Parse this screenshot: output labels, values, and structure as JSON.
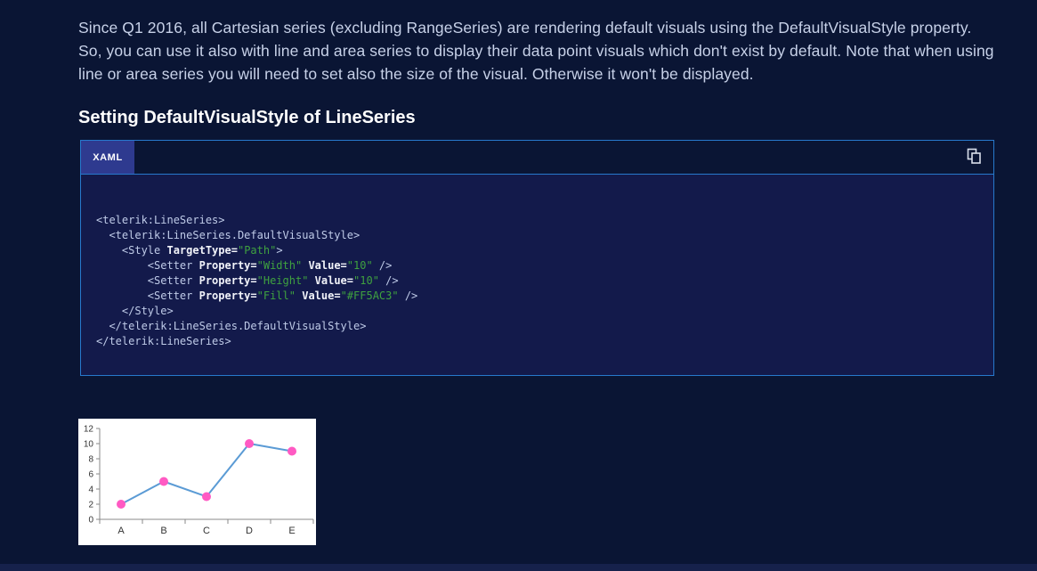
{
  "page": {
    "background": "#0A1534",
    "footer_bar_color": "#16214B"
  },
  "article": {
    "intro_paragraph": "Since Q1 2016, all Cartesian series (excluding RangeSeries) are rendering default visuals using the DefaultVisualStyle property. So, you can use it also with line and area series to display their data point visuals which don't exist by default. Note that when using line or area series you will need to set also the size of the visual. Otherwise it won't be displayed.",
    "section_heading": "Setting DefaultVisualStyle of LineSeries"
  },
  "code_block": {
    "tab_label": "XAML",
    "copy_icon": "copy-icon",
    "colors": {
      "border": "#2779CC",
      "active_tab_bg": "#2E3A8F",
      "code_bg": "#131A4B",
      "tag_text": "#BFCBE8",
      "attribute_text": "#F1F3F9",
      "value_text": "#3FA23F"
    },
    "lines": [
      [
        {
          "t": "<telerik:LineSeries>",
          "c": "tag"
        }
      ],
      [
        {
          "t": "  <telerik:LineSeries.DefaultVisualStyle>",
          "c": "tag"
        }
      ],
      [
        {
          "t": "    <Style ",
          "c": "tag"
        },
        {
          "t": "TargetType=",
          "c": "attr"
        },
        {
          "t": "\"Path\"",
          "c": "val"
        },
        {
          "t": ">",
          "c": "tag"
        }
      ],
      [
        {
          "t": "        <Setter ",
          "c": "tag"
        },
        {
          "t": "Property=",
          "c": "attr"
        },
        {
          "t": "\"Width\"",
          "c": "val"
        },
        {
          "t": " ",
          "c": "tag"
        },
        {
          "t": "Value=",
          "c": "attr"
        },
        {
          "t": "\"10\"",
          "c": "val"
        },
        {
          "t": " />",
          "c": "tag"
        }
      ],
      [
        {
          "t": "        <Setter ",
          "c": "tag"
        },
        {
          "t": "Property=",
          "c": "attr"
        },
        {
          "t": "\"Height\"",
          "c": "val"
        },
        {
          "t": " ",
          "c": "tag"
        },
        {
          "t": "Value=",
          "c": "attr"
        },
        {
          "t": "\"10\"",
          "c": "val"
        },
        {
          "t": " />",
          "c": "tag"
        }
      ],
      [
        {
          "t": "        <Setter ",
          "c": "tag"
        },
        {
          "t": "Property=",
          "c": "attr"
        },
        {
          "t": "\"Fill\"",
          "c": "val"
        },
        {
          "t": " ",
          "c": "tag"
        },
        {
          "t": "Value=",
          "c": "attr"
        },
        {
          "t": "\"#FF5AC3\"",
          "c": "val"
        },
        {
          "t": " />",
          "c": "tag"
        }
      ],
      [
        {
          "t": "    </Style>",
          "c": "tag"
        }
      ],
      [
        {
          "t": "  </telerik:LineSeries.DefaultVisualStyle>",
          "c": "tag"
        }
      ],
      [
        {
          "t": "</telerik:LineSeries>",
          "c": "tag"
        }
      ]
    ]
  },
  "chart_data": {
    "type": "line",
    "categories": [
      "A",
      "B",
      "C",
      "D",
      "E"
    ],
    "values": [
      2,
      5,
      3,
      10,
      9
    ],
    "title": "",
    "xlabel": "",
    "ylabel": "",
    "ylim": [
      0,
      12
    ],
    "yticks": [
      0,
      2,
      4,
      6,
      8,
      10,
      12
    ],
    "grid": false,
    "legend_position": "none",
    "line_color": "#5B9BD5",
    "point_color": "#FF5AC3",
    "axis_color": "#8A8A8A",
    "tick_label_color": "#333333",
    "plot_background": "#FFFFFF"
  }
}
